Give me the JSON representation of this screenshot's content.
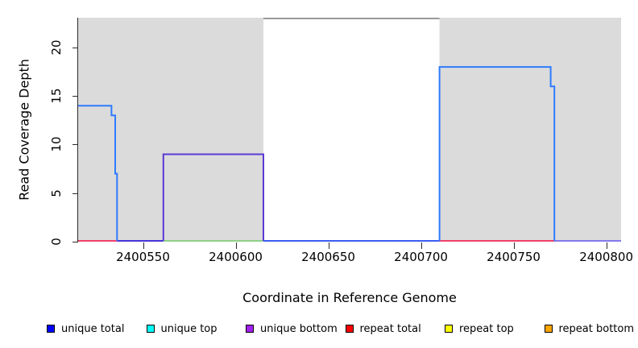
{
  "chart_data": {
    "type": "line",
    "title": "",
    "xlabel": "Coordinate in Reference Genome",
    "ylabel": "Read Coverage Depth",
    "xlim": [
      2400515,
      2400808
    ],
    "ylim": [
      0,
      23.07
    ],
    "x_ticks": [
      2400550,
      2400600,
      2400650,
      2400700,
      2400750,
      2400800
    ],
    "x_tick_labels": [
      "2400550",
      "2400600",
      "2400650",
      "2400700",
      "2400750",
      "2400800"
    ],
    "y_ticks": [
      0,
      5,
      10,
      15,
      20
    ],
    "y_tick_labels": [
      "0",
      "5",
      "10",
      "15",
      "20"
    ],
    "grid": false,
    "legend_position": "bottom",
    "background_bands": [
      {
        "name": "shaded-region-left",
        "x0": 2400515,
        "x1": 2400615,
        "color": "#dbdbdb"
      },
      {
        "name": "unshaded-region-middle",
        "x0": 2400615,
        "x1": 2400710,
        "color": "#ffffff"
      },
      {
        "name": "shaded-region-right",
        "x0": 2400710,
        "x1": 2400808,
        "color": "#dbdbdb"
      }
    ],
    "series": [
      {
        "name": "total-coverage-line",
        "color": "#8c8c8c",
        "width": 2,
        "points": [
          [
            2400615,
            23
          ],
          [
            2400710,
            23
          ]
        ]
      },
      {
        "name": "zero-line-repeat-left",
        "color": "#ed4168",
        "width": 2,
        "points": [
          [
            2400515,
            0
          ],
          [
            2400536,
            0
          ]
        ]
      },
      {
        "name": "zero-line-indigo",
        "color": "#4634d8",
        "width": 2,
        "points": [
          [
            2400536,
            0
          ],
          [
            2400561,
            0
          ]
        ]
      },
      {
        "name": "zero-line-green",
        "color": "#8fd08a",
        "width": 2,
        "points": [
          [
            2400561,
            0
          ],
          [
            2400615,
            0
          ]
        ]
      },
      {
        "name": "zero-line-blue-middle",
        "color": "#3c5ef0",
        "width": 2,
        "points": [
          [
            2400615,
            0
          ],
          [
            2400710,
            0
          ]
        ]
      },
      {
        "name": "zero-line-repeat-right",
        "color": "#ed4168",
        "width": 2,
        "points": [
          [
            2400710,
            0
          ],
          [
            2400772,
            0
          ]
        ]
      },
      {
        "name": "zero-line-violet-right",
        "color": "#8478ec",
        "width": 2,
        "points": [
          [
            2400772,
            0
          ],
          [
            2400808,
            0
          ]
        ]
      },
      {
        "name": "unique-bottom-coverage-box",
        "color": "#5b38d4",
        "width": 2,
        "points": [
          [
            2400561,
            0
          ],
          [
            2400561,
            9
          ],
          [
            2400615,
            9
          ],
          [
            2400615,
            0
          ]
        ]
      },
      {
        "name": "unique-coverage-left",
        "color": "#2e7bfe",
        "width": 2,
        "points": [
          [
            2400515,
            14
          ],
          [
            2400533,
            14
          ],
          [
            2400533,
            13
          ],
          [
            2400535,
            13
          ],
          [
            2400535,
            7
          ],
          [
            2400536,
            7
          ],
          [
            2400536,
            0
          ]
        ]
      },
      {
        "name": "unique-coverage-right",
        "color": "#2e7bfe",
        "width": 2,
        "points": [
          [
            2400710,
            0
          ],
          [
            2400710,
            18
          ],
          [
            2400770,
            18
          ],
          [
            2400770,
            16
          ],
          [
            2400772,
            16
          ],
          [
            2400772,
            0
          ]
        ]
      }
    ],
    "legend": [
      {
        "label": "unique total",
        "color": "#0000ff"
      },
      {
        "label": "unique top",
        "color": "#00ffff"
      },
      {
        "label": "unique bottom",
        "color": "#a020f0"
      },
      {
        "label": "repeat total",
        "color": "#ff0000"
      },
      {
        "label": "repeat top",
        "color": "#ffff00"
      },
      {
        "label": "repeat bottom",
        "color": "#ffa500"
      }
    ]
  }
}
